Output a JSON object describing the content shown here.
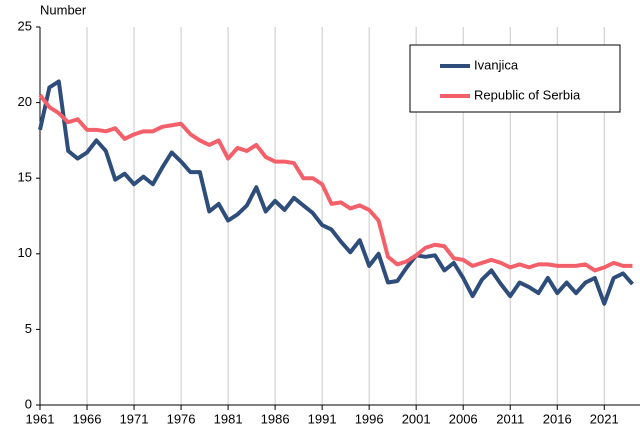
{
  "chart_data": {
    "type": "line",
    "y_label": "Number",
    "x": [
      1961,
      1962,
      1963,
      1964,
      1965,
      1966,
      1967,
      1968,
      1969,
      1970,
      1971,
      1972,
      1973,
      1974,
      1975,
      1976,
      1977,
      1978,
      1979,
      1980,
      1981,
      1982,
      1983,
      1984,
      1985,
      1986,
      1987,
      1988,
      1989,
      1990,
      1991,
      1992,
      1993,
      1994,
      1995,
      1996,
      1997,
      1998,
      1999,
      2000,
      2001,
      2002,
      2003,
      2004,
      2005,
      2006,
      2007,
      2008,
      2009,
      2010,
      2011,
      2012,
      2013,
      2014,
      2015,
      2016,
      2017,
      2018,
      2019,
      2020,
      2021,
      2022,
      2023,
      2024
    ],
    "series": [
      {
        "name": "Ivanjica",
        "color": "#2e4d7b",
        "values": [
          18.2,
          21.0,
          21.4,
          16.8,
          16.3,
          16.7,
          17.5,
          16.8,
          14.9,
          15.3,
          14.6,
          15.1,
          14.6,
          15.7,
          16.7,
          16.1,
          15.4,
          15.4,
          12.8,
          13.3,
          12.2,
          12.6,
          13.2,
          14.4,
          12.8,
          13.5,
          12.9,
          13.7,
          13.2,
          12.7,
          11.9,
          11.6,
          10.8,
          10.1,
          10.9,
          9.2,
          10.0,
          8.1,
          8.2,
          9.1,
          9.9,
          9.8,
          9.9,
          8.9,
          9.4,
          8.4,
          7.2,
          8.3,
          8.9,
          8.0,
          7.2,
          8.1,
          7.8,
          7.4,
          8.4,
          7.4,
          8.1,
          7.4,
          8.1,
          8.4,
          6.7,
          8.4,
          8.7,
          8.0
        ]
      },
      {
        "name": "Republic of Serbia",
        "color": "#f4606a",
        "values": [
          20.5,
          19.7,
          19.3,
          18.7,
          18.9,
          18.2,
          18.2,
          18.1,
          18.3,
          17.6,
          17.9,
          18.1,
          18.1,
          18.4,
          18.5,
          18.6,
          17.9,
          17.5,
          17.2,
          17.5,
          16.3,
          17.0,
          16.8,
          17.2,
          16.4,
          16.1,
          16.1,
          16.0,
          15.0,
          15.0,
          14.6,
          13.3,
          13.4,
          13.0,
          13.2,
          12.9,
          12.2,
          9.8,
          9.3,
          9.5,
          9.9,
          10.4,
          10.6,
          10.5,
          9.7,
          9.6,
          9.2,
          9.4,
          9.6,
          9.4,
          9.1,
          9.3,
          9.1,
          9.3,
          9.3,
          9.2,
          9.2,
          9.2,
          9.3,
          8.9,
          9.1,
          9.4,
          9.2,
          9.2
        ]
      }
    ],
    "xlim": [
      1961,
      2024.8
    ],
    "xticks": [
      1961,
      1966,
      1971,
      1976,
      1981,
      1986,
      1991,
      1996,
      2001,
      2006,
      2011,
      2016,
      2021
    ],
    "ylim": [
      0,
      25
    ],
    "yticks": [
      0,
      5,
      10,
      15,
      20,
      25
    ],
    "grid": "x",
    "legend": "upper right"
  }
}
